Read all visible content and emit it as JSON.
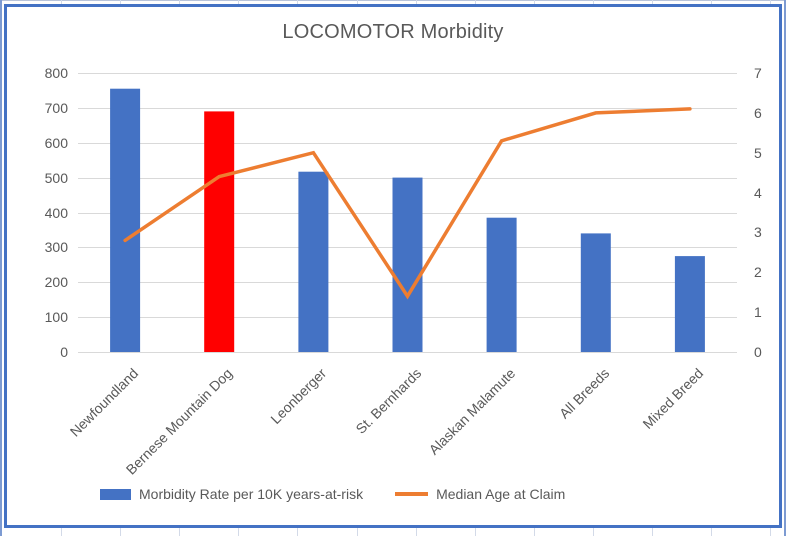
{
  "window": {
    "background_color": "#FFFFFF",
    "spreadsheet_gridline_color": "#D3DAE8",
    "spreadsheet_edge_line_color": "#7D9BD2",
    "chart_border_color": "#4472C4"
  },
  "chart_data": {
    "type": "combo",
    "title": "LOCOMOTOR Morbidity",
    "categories": [
      "Newfoundland",
      "Bernese Mountain Dog",
      "Leonberger",
      "St. Bernhards",
      "Alaskan Malamute",
      "All Breeds",
      "Mixed Breed"
    ],
    "series": [
      {
        "name": "Morbidity Rate per 10K years-at-risk",
        "type": "bar",
        "axis": "left",
        "color": "#4472C4",
        "highlight": {
          "index": 1,
          "color": "#FF0000"
        },
        "values": [
          755,
          690,
          517,
          500,
          385,
          340,
          275
        ]
      },
      {
        "name": "Median Age at Claim",
        "type": "line",
        "axis": "right",
        "color": "#ED7D31",
        "values": [
          2.8,
          4.4,
          5.0,
          1.4,
          5.3,
          6.0,
          6.1
        ]
      }
    ],
    "left_axis": {
      "min": 0,
      "max": 800,
      "step": 100,
      "tick_labels": [
        "0",
        "100",
        "200",
        "300",
        "400",
        "500",
        "600",
        "700",
        "800"
      ]
    },
    "right_axis": {
      "min": 0,
      "max": 7,
      "step": 1,
      "tick_labels": [
        "0",
        "1",
        "2",
        "3",
        "4",
        "5",
        "6",
        "7"
      ]
    },
    "grid": true,
    "gridline_color": "#D9D9D9",
    "text_color": "#595959",
    "title_color": "#595959",
    "legend_position": "bottom"
  }
}
